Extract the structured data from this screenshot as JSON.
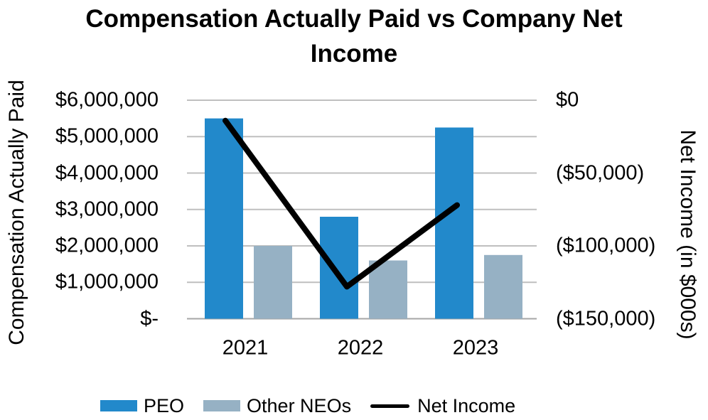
{
  "title": "Compensation Actually Paid vs Company Net Income",
  "chart_data": {
    "type": "combo_bar_line",
    "title": "Compensation Actually Paid vs Company Net Income",
    "categories": [
      "2021",
      "2022",
      "2023"
    ],
    "series": [
      {
        "name": "PEO",
        "type": "bar",
        "axis": "left",
        "color": "#2289CB",
        "values": [
          5500000,
          2800000,
          5250000
        ]
      },
      {
        "name": "Other NEOs",
        "type": "bar",
        "axis": "left",
        "color": "#96B1C4",
        "values": [
          2000000,
          1600000,
          1750000
        ]
      },
      {
        "name": "Net Income",
        "type": "line",
        "axis": "right",
        "color": "#000000",
        "values": [
          -14000,
          -128000,
          -72000
        ]
      }
    ],
    "left_axis": {
      "title": "Compensation Actually Paid",
      "ticks": [
        "$6,000,000",
        "$5,000,000",
        "$4,000,000",
        "$3,000,000",
        "$2,000,000",
        "$1,000,000",
        "$-"
      ],
      "range": [
        0,
        6000000
      ]
    },
    "right_axis": {
      "title": "Net Income (in $000s)",
      "ticks": [
        "$0",
        "($50,000)",
        "($100,000)",
        "($150,000)"
      ],
      "range": [
        -150000,
        0
      ],
      "units": "$000s"
    },
    "legend": [
      "PEO",
      "Other NEOs",
      "Net Income"
    ],
    "legend_position": "bottom",
    "grid": true,
    "gridline_color": "#BFBFBF",
    "axis_line_color": "#A6A6A6",
    "background_color": "#FFFFFF",
    "text_color": "#000000"
  }
}
